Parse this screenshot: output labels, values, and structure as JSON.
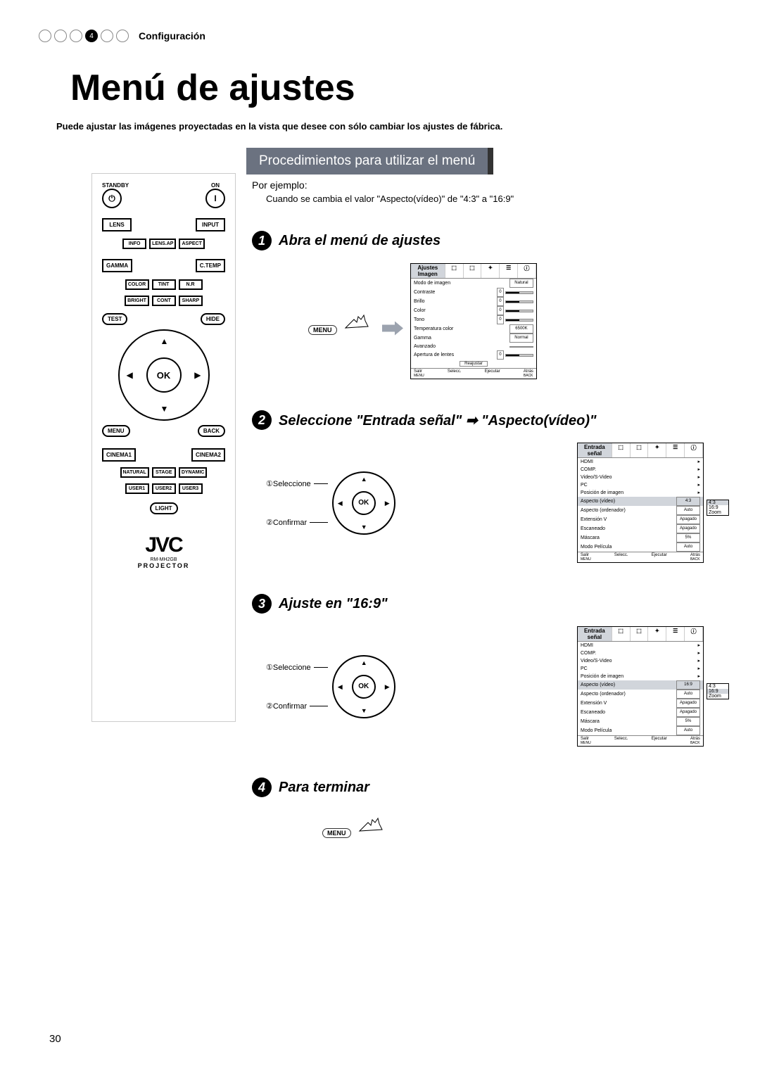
{
  "breadcrumb": {
    "active_index": 4,
    "label": "Configuración"
  },
  "page_title": "Menú de ajustes",
  "page_sub": "Puede ajustar las imágenes proyectadas en la vista que desee con sólo cambiar los ajustes de fábrica.",
  "section_bar": "Procedimientos para utilizar el menú",
  "example_label": "Por ejemplo:",
  "example_text": "Cuando se cambia el valor \"Aspecto(vídeo)\" de \"4:3\" a \"16:9\"",
  "steps": {
    "s1": {
      "title": "Abra el menú de ajustes"
    },
    "s2": {
      "title_pre": "Seleccione \"",
      "title_em1": "Entrada señal",
      "title_mid": "\" ➡ \"",
      "title_em2": "Aspecto(vídeo)",
      "title_post": "\"",
      "sel": "①Seleccione",
      "conf": "②Confirmar"
    },
    "s3": {
      "title_pre": "Ajuste en \"",
      "title_em": "16:9",
      "title_post": "\"",
      "sel": "①Seleccione",
      "conf": "②Confirmar"
    },
    "s4": {
      "title": "Para terminar"
    }
  },
  "menu_badge": "MENU",
  "ok_label": "OK",
  "remote": {
    "standby": "STANDBY",
    "on": "ON",
    "lens": "LENS",
    "input": "INPUT",
    "info": "INFO",
    "lensap": "LENS.AP",
    "aspect": "ASPECT",
    "gamma": "GAMMA",
    "ctemp": "C.TEMP",
    "color": "COLOR",
    "tint": "TINT",
    "nr": "N.R",
    "bright": "BRIGHT",
    "cont": "CONT",
    "sharp": "SHARP",
    "test": "TEST",
    "hide": "HIDE",
    "ok": "OK",
    "menu": "MENU",
    "back": "BACK",
    "cinema1": "CINEMA1",
    "cinema2": "CINEMA2",
    "natural": "NATURAL",
    "stage": "STAGE",
    "dynamic": "DYNAMIC",
    "user1": "USER1",
    "user2": "USER2",
    "user3": "USER3",
    "light": "LIGHT",
    "logo": "JVC",
    "model": "RM-MH2GB",
    "projector": "PROJECTOR"
  },
  "osd1": {
    "tab": "Ajustes Imagen",
    "rows": [
      {
        "l": "Modo de imagen",
        "v": "Natural"
      },
      {
        "l": "Contraste",
        "n": "0"
      },
      {
        "l": "Brillo",
        "n": "0"
      },
      {
        "l": "Color",
        "n": "0"
      },
      {
        "l": "Tono",
        "n": "0"
      },
      {
        "l": "Temperatura color",
        "v": "6500K"
      },
      {
        "l": "Gamma",
        "v": "Normal"
      },
      {
        "l": "Avanzado",
        "v": ""
      },
      {
        "l": "Apertura de lentes",
        "n": "0"
      }
    ],
    "btn": "Reajustar",
    "foot": {
      "l": "Salir",
      "m": "Selecc.",
      "e": "Ejecutar",
      "b": "Atrás",
      "menu": "MENU",
      "back": "BACK"
    }
  },
  "osd2": {
    "tab": "Entrada señal",
    "rows": [
      {
        "l": "HDMI",
        "arrow": true
      },
      {
        "l": "COMP.",
        "arrow": true
      },
      {
        "l": "Video/S-Video",
        "arrow": true
      },
      {
        "l": "PC",
        "arrow": true
      },
      {
        "l": "Posición de imagen",
        "arrow": true
      },
      {
        "l": "Aspecto (vídeo)",
        "v": "4:3",
        "hl": true
      },
      {
        "l": "Aspecto (ordenador)",
        "v": "Auto"
      },
      {
        "l": "Extensión V",
        "v": "Apagado"
      },
      {
        "l": "Escaneado",
        "v": "Apagado"
      },
      {
        "l": "Máscara",
        "v": "5%"
      },
      {
        "l": "Modo Película",
        "v": "Auto"
      }
    ],
    "dropdown": [
      "4:3",
      "16:9",
      "Zoom"
    ],
    "dropdown_sel": 0,
    "foot": {
      "l": "Salir",
      "m": "Selecc.",
      "e": "Ejecutar",
      "b": "Atrás",
      "menu": "MENU",
      "back": "BACK"
    }
  },
  "osd3": {
    "tab": "Entrada señal",
    "rows": [
      {
        "l": "HDMI",
        "arrow": true
      },
      {
        "l": "COMP.",
        "arrow": true
      },
      {
        "l": "Video/S-Video",
        "arrow": true
      },
      {
        "l": "PC",
        "arrow": true
      },
      {
        "l": "Posición de imagen",
        "arrow": true
      },
      {
        "l": "Aspecto (vídeo)",
        "v": "16:9",
        "hl": true
      },
      {
        "l": "Aspecto (ordenador)",
        "v": "Auto"
      },
      {
        "l": "Extensión V",
        "v": "Apagado"
      },
      {
        "l": "Escaneado",
        "v": "Apagado"
      },
      {
        "l": "Máscara",
        "v": "5%"
      },
      {
        "l": "Modo Película",
        "v": "Auto"
      }
    ],
    "dropdown": [
      "4:3",
      "16:9",
      "Zoom"
    ],
    "dropdown_sel": 1,
    "foot": {
      "l": "Salir",
      "m": "Selecc.",
      "e": "Ejecutar",
      "b": "Atrás",
      "menu": "MENU",
      "back": "BACK"
    }
  },
  "page_number": "30"
}
